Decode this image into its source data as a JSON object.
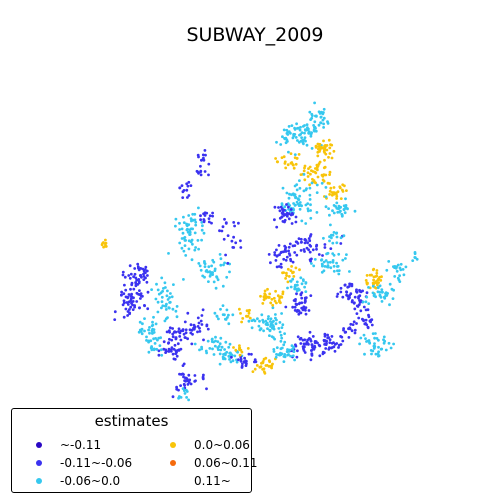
{
  "title": "SUBWAY_2009",
  "legend": {
    "title": "estimates",
    "items": [
      {
        "label": "~-0.11",
        "color": "#2a07c4"
      },
      {
        "label": "-0.11~-0.06",
        "color": "#3b32f0"
      },
      {
        "label": "-0.06~0.0",
        "color": "#36c8ef"
      },
      {
        "label": "0.0~0.06",
        "color": "#f8c40a"
      },
      {
        "label": "0.06~0.11",
        "color": "#f56a0c"
      },
      {
        "label": "0.11~",
        "color": "#ffffff"
      }
    ]
  }
}
